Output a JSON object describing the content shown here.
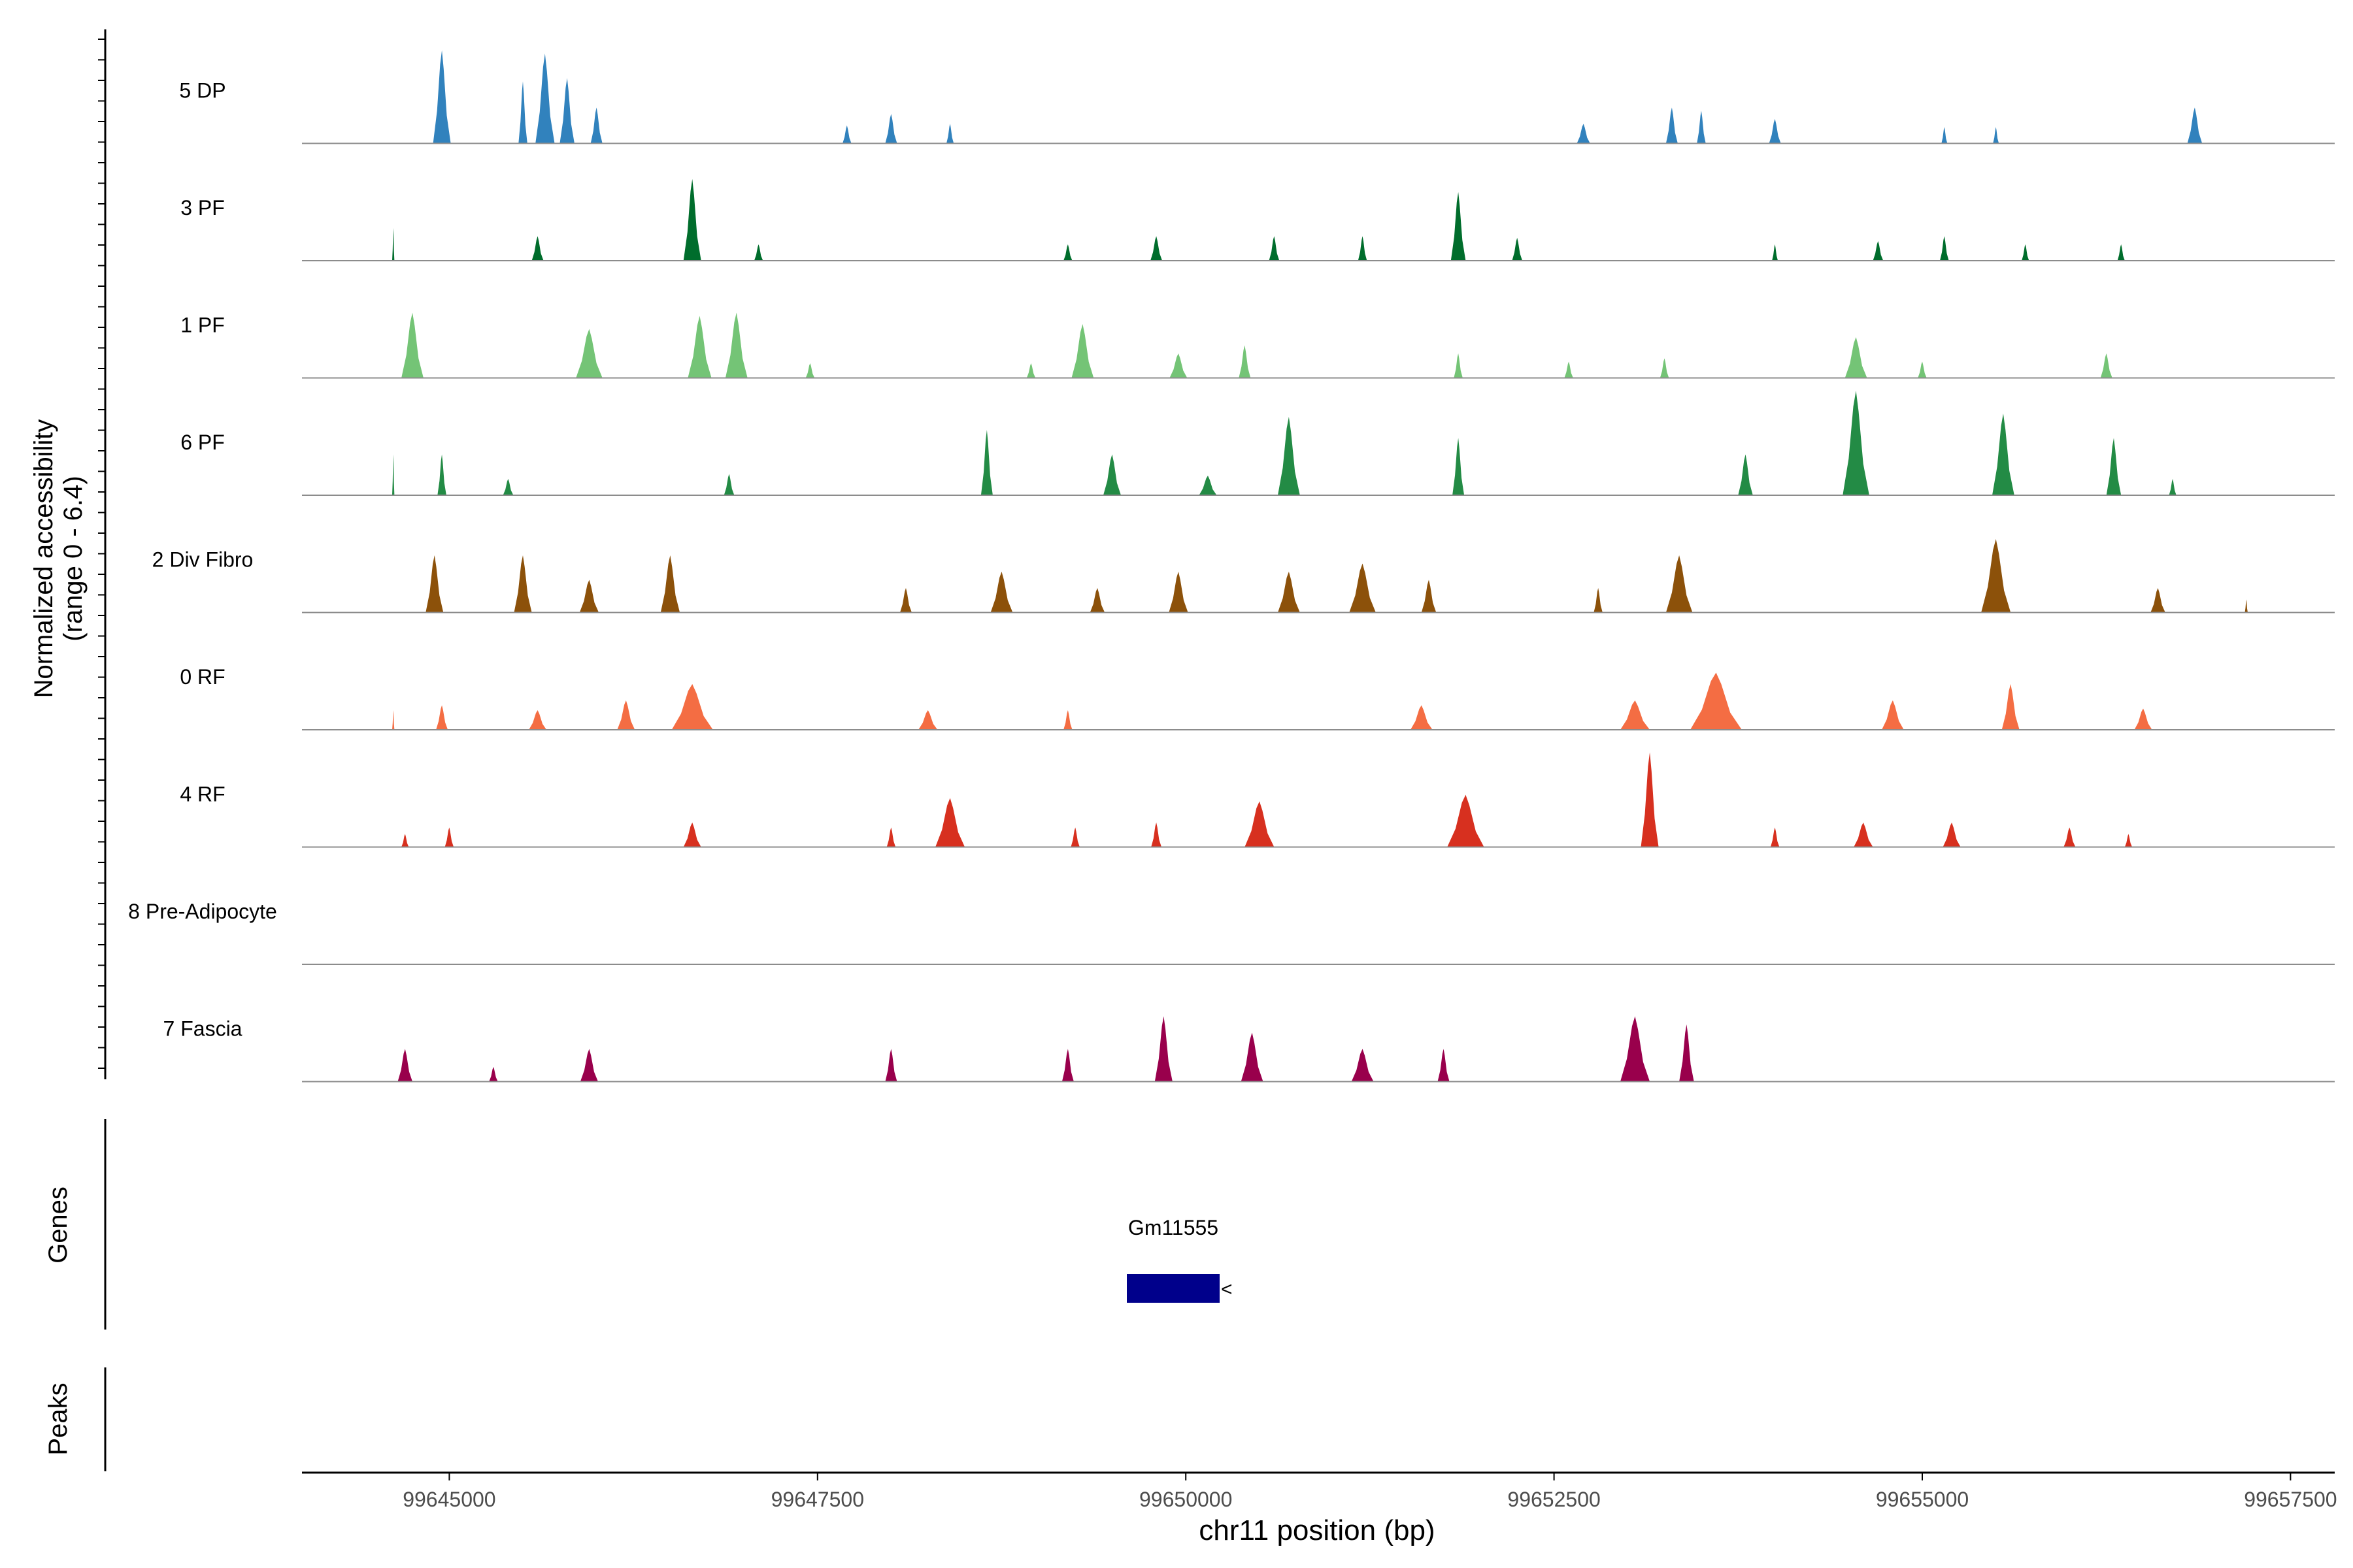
{
  "chart_data": {
    "type": "area",
    "title": "",
    "xlabel": "chr11 position (bp)",
    "ylabel": "Normalized accessibility",
    "ylabel_range": "(range 0 - 6.4)",
    "ylim": [
      0,
      6.4
    ],
    "xlim": [
      99644000,
      99657800
    ],
    "x_ticks": [
      99645000,
      99647500,
      99650000,
      99652500,
      99655000,
      99657500
    ],
    "x_tick_labels": [
      "99645000",
      "99647500",
      "99650000",
      "99652500",
      "99655000",
      "99657500"
    ],
    "tracks": [
      {
        "name": "5 DP",
        "color": "#3182bd",
        "peaks": [
          [
            99644950,
            5.7,
            120
          ],
          [
            99645500,
            3.8,
            60
          ],
          [
            99645650,
            5.5,
            130
          ],
          [
            99645800,
            4.0,
            100
          ],
          [
            99646000,
            2.2,
            80
          ],
          [
            99647700,
            1.1,
            60
          ],
          [
            99648000,
            1.8,
            80
          ],
          [
            99648400,
            1.2,
            50
          ],
          [
            99652700,
            1.2,
            90
          ],
          [
            99653300,
            2.2,
            80
          ],
          [
            99653500,
            2.0,
            60
          ],
          [
            99654000,
            1.5,
            80
          ],
          [
            99655150,
            1.0,
            40
          ],
          [
            99655500,
            1.0,
            40
          ],
          [
            99656850,
            2.2,
            100
          ]
        ]
      },
      {
        "name": "3 PF",
        "color": "#006d2c",
        "peaks": [
          [
            99644620,
            2.0,
            15
          ],
          [
            99645600,
            1.5,
            80
          ],
          [
            99646650,
            5.0,
            120
          ],
          [
            99647100,
            1.0,
            60
          ],
          [
            99649200,
            1.0,
            60
          ],
          [
            99649800,
            1.5,
            80
          ],
          [
            99650600,
            1.5,
            70
          ],
          [
            99651200,
            1.5,
            60
          ],
          [
            99651850,
            4.2,
            100
          ],
          [
            99652250,
            1.4,
            70
          ],
          [
            99654000,
            1.0,
            40
          ],
          [
            99654700,
            1.2,
            70
          ],
          [
            99655150,
            1.5,
            60
          ],
          [
            99655700,
            1.0,
            50
          ],
          [
            99656350,
            1.0,
            50
          ]
        ]
      },
      {
        "name": "1 PF",
        "color": "#74c476",
        "peaks": [
          [
            99644750,
            4.0,
            150
          ],
          [
            99645950,
            3.0,
            180
          ],
          [
            99646700,
            3.8,
            160
          ],
          [
            99646950,
            4.0,
            150
          ],
          [
            99647450,
            0.9,
            60
          ],
          [
            99648950,
            0.9,
            60
          ],
          [
            99649300,
            3.3,
            150
          ],
          [
            99649950,
            1.5,
            120
          ],
          [
            99650400,
            2.0,
            80
          ],
          [
            99651850,
            1.5,
            60
          ],
          [
            99652600,
            1.0,
            60
          ],
          [
            99653250,
            1.2,
            60
          ],
          [
            99654550,
            2.5,
            150
          ],
          [
            99655000,
            1.0,
            60
          ],
          [
            99656250,
            1.5,
            80
          ]
        ]
      },
      {
        "name": "6 PF",
        "color": "#238b45",
        "peaks": [
          [
            99644620,
            2.5,
            15
          ],
          [
            99644950,
            2.5,
            60
          ],
          [
            99645400,
            1.0,
            70
          ],
          [
            99646900,
            1.3,
            70
          ],
          [
            99648650,
            4.0,
            80
          ],
          [
            99649500,
            2.5,
            120
          ],
          [
            99650150,
            1.2,
            120
          ],
          [
            99650700,
            4.8,
            150
          ],
          [
            99651850,
            3.5,
            80
          ],
          [
            99653800,
            2.5,
            100
          ],
          [
            99654550,
            6.4,
            180
          ],
          [
            99655550,
            5.0,
            150
          ],
          [
            99656300,
            3.5,
            100
          ],
          [
            99656700,
            1.0,
            50
          ]
        ]
      },
      {
        "name": "2 Div Fibro",
        "color": "#8c510a",
        "peaks": [
          [
            99644900,
            3.5,
            120
          ],
          [
            99645500,
            3.5,
            120
          ],
          [
            99645950,
            2.0,
            130
          ],
          [
            99646500,
            3.5,
            130
          ],
          [
            99648100,
            1.5,
            80
          ],
          [
            99648750,
            2.5,
            150
          ],
          [
            99649400,
            1.5,
            100
          ],
          [
            99649950,
            2.5,
            130
          ],
          [
            99650700,
            2.5,
            150
          ],
          [
            99651200,
            3.0,
            180
          ],
          [
            99651650,
            2.0,
            100
          ],
          [
            99652800,
            1.5,
            60
          ],
          [
            99653350,
            3.5,
            180
          ],
          [
            99655500,
            4.5,
            200
          ],
          [
            99656600,
            1.5,
            100
          ],
          [
            99657200,
            0.8,
            20
          ]
        ]
      },
      {
        "name": "0 RF",
        "color": "#f46d43",
        "peaks": [
          [
            99644620,
            1.2,
            15
          ],
          [
            99644950,
            1.5,
            80
          ],
          [
            99645600,
            1.2,
            120
          ],
          [
            99646200,
            1.8,
            120
          ],
          [
            99646650,
            2.8,
            280
          ],
          [
            99648250,
            1.2,
            130
          ],
          [
            99649200,
            1.2,
            60
          ],
          [
            99651600,
            1.5,
            150
          ],
          [
            99653050,
            1.8,
            200
          ],
          [
            99653600,
            3.5,
            350
          ],
          [
            99654800,
            1.8,
            150
          ],
          [
            99655600,
            2.8,
            120
          ],
          [
            99656500,
            1.3,
            120
          ]
        ]
      },
      {
        "name": "4 RF",
        "color": "#d7301f",
        "peaks": [
          [
            99644700,
            0.8,
            50
          ],
          [
            99645000,
            1.2,
            60
          ],
          [
            99646650,
            1.5,
            120
          ],
          [
            99648000,
            1.2,
            60
          ],
          [
            99648400,
            3.0,
            200
          ],
          [
            99649250,
            1.2,
            60
          ],
          [
            99649800,
            1.5,
            70
          ],
          [
            99650500,
            2.8,
            200
          ],
          [
            99651900,
            3.2,
            250
          ],
          [
            99653150,
            5.8,
            120
          ],
          [
            99654000,
            1.2,
            60
          ],
          [
            99654600,
            1.5,
            130
          ],
          [
            99655200,
            1.5,
            120
          ],
          [
            99656000,
            1.2,
            80
          ],
          [
            99656400,
            0.8,
            50
          ]
        ]
      },
      {
        "name": "8 Pre-Adipocyte",
        "color": "#8c6bb1",
        "peaks": []
      },
      {
        "name": "7 Fascia",
        "color": "#99004c",
        "peaks": [
          [
            99644700,
            2.0,
            100
          ],
          [
            99645300,
            0.9,
            60
          ],
          [
            99645950,
            2.0,
            120
          ],
          [
            99648000,
            2.0,
            80
          ],
          [
            99649200,
            2.0,
            80
          ],
          [
            99649850,
            4.0,
            120
          ],
          [
            99650450,
            3.0,
            150
          ],
          [
            99651200,
            2.0,
            150
          ],
          [
            99651750,
            2.0,
            80
          ],
          [
            99653050,
            4.0,
            200
          ],
          [
            99653400,
            3.5,
            100
          ]
        ]
      }
    ]
  },
  "panels": {
    "genes_label": "Genes",
    "peaks_label": "Peaks",
    "gene": {
      "name": "Gm11555",
      "start": 99649600,
      "end": 99650230,
      "color": "#00008b",
      "strand_glyph": "<"
    }
  }
}
